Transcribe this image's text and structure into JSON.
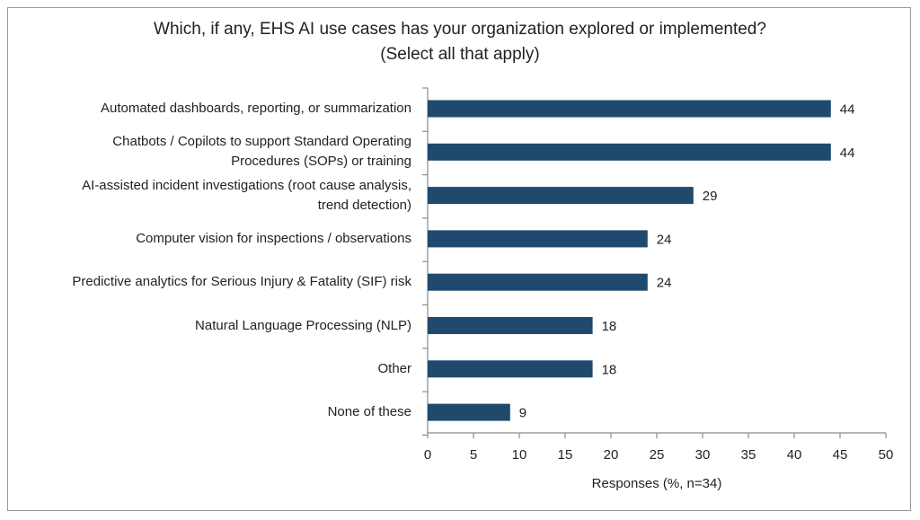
{
  "chart_data": {
    "type": "bar",
    "orientation": "horizontal",
    "title_line1": "Which, if any, EHS AI use cases has your organization explored or implemented?",
    "title_line2": "(Select all that apply)",
    "xlabel": "Responses (%, n=34)",
    "ylabel": "",
    "xlim": [
      0,
      50
    ],
    "xticks": [
      0,
      5,
      10,
      15,
      20,
      25,
      30,
      35,
      40,
      45,
      50
    ],
    "categories": [
      [
        "Automated dashboards, reporting, or summarization"
      ],
      [
        "Chatbots / Copilots to support Standard Operating",
        "Procedures (SOPs) or training"
      ],
      [
        "AI-assisted incident investigations (root cause analysis,",
        "trend detection)"
      ],
      [
        "Computer vision for inspections / observations"
      ],
      [
        "Predictive analytics for Serious Injury & Fatality (SIF) risk"
      ],
      [
        "Natural Language Processing (NLP)"
      ],
      [
        "Other"
      ],
      [
        "None of these"
      ]
    ],
    "values": [
      44,
      44,
      29,
      24,
      24,
      18,
      18,
      9
    ],
    "bar_color": "#1f4a6e",
    "grid": false
  }
}
